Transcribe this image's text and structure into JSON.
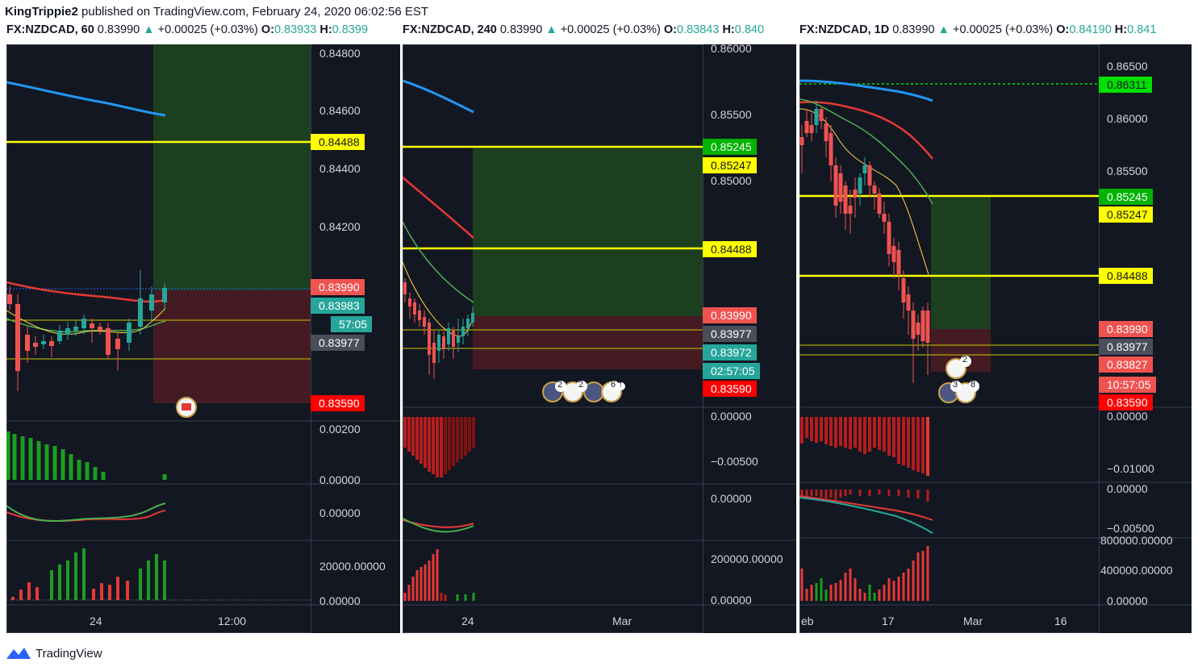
{
  "header": {
    "author": "KingTrippie2",
    "published": "published on TradingView.com, February 24, 2020 06:02:56 EST"
  },
  "panels": [
    {
      "symbol": "FX:NZDCAD, 60",
      "price": "0.83990",
      "change": "+0.00025 (+0.03%)",
      "o_label": "O:",
      "o_value": "0.83933",
      "h_label": "H:",
      "h_value": "0.8399",
      "price_axis": [
        "0.84800",
        "0.84600",
        "0.84400",
        "0.84200"
      ],
      "tags": [
        "0.84488",
        "0.83990",
        "0.83983",
        "57:05",
        "0.83977",
        "0.83590"
      ],
      "ind_axis": [
        "0.00200",
        "0.00000",
        "0.00000",
        "20000.00000",
        "0.00000"
      ],
      "time_labels": [
        "24",
        "12:00"
      ]
    },
    {
      "symbol": "FX:NZDCAD, 240",
      "price": "0.83990",
      "change": "+0.00025 (+0.03%)",
      "o_label": "O:",
      "o_value": "0.83843",
      "h_label": "H:",
      "h_value": "0.840",
      "price_axis": [
        "0.86000",
        "0.85500",
        "0.85000"
      ],
      "tags": [
        "0.85245",
        "0.85247",
        "0.84488",
        "0.83990",
        "0.83977",
        "0.83972",
        "02:57:05",
        "0.83590"
      ],
      "ind_axis": [
        "0.00000",
        "−0.00500",
        "0.00000",
        "200000.00000",
        "0.00000"
      ],
      "time_labels": [
        "24",
        "Mar"
      ],
      "event_labels": [
        "2",
        "2",
        "6",
        "!"
      ]
    },
    {
      "symbol": "FX:NZDCAD, 1D",
      "price": "0.83990",
      "change": "+0.00025 (+0.03%)",
      "o_label": "O:",
      "o_value": "0.84190",
      "h_label": "H:",
      "h_value": "0.841",
      "price_axis": [
        "0.86500",
        "0.86000",
        "0.85500"
      ],
      "tags": [
        "0.86311",
        "0.85245",
        "0.85247",
        "0.84488",
        "0.83990",
        "0.83977",
        "0.83827",
        "10:57:05",
        "0.83590"
      ],
      "ind_axis": [
        "0.00000",
        "−0.01000",
        "0.00000",
        "−0.00500",
        "800000.00000",
        "400000.00000",
        "0.00000"
      ],
      "time_labels": [
        "eb",
        "17",
        "Mar",
        "16"
      ],
      "event_labels": [
        "2",
        "3",
        "8"
      ]
    }
  ],
  "footer": {
    "brand": "TradingView"
  },
  "colors": {
    "bg": "#131722",
    "up": "#26a69a",
    "down": "#ef5350",
    "yellow": "#ffff00",
    "green_tag": "#00c800",
    "red_tag": "#ff0000"
  }
}
